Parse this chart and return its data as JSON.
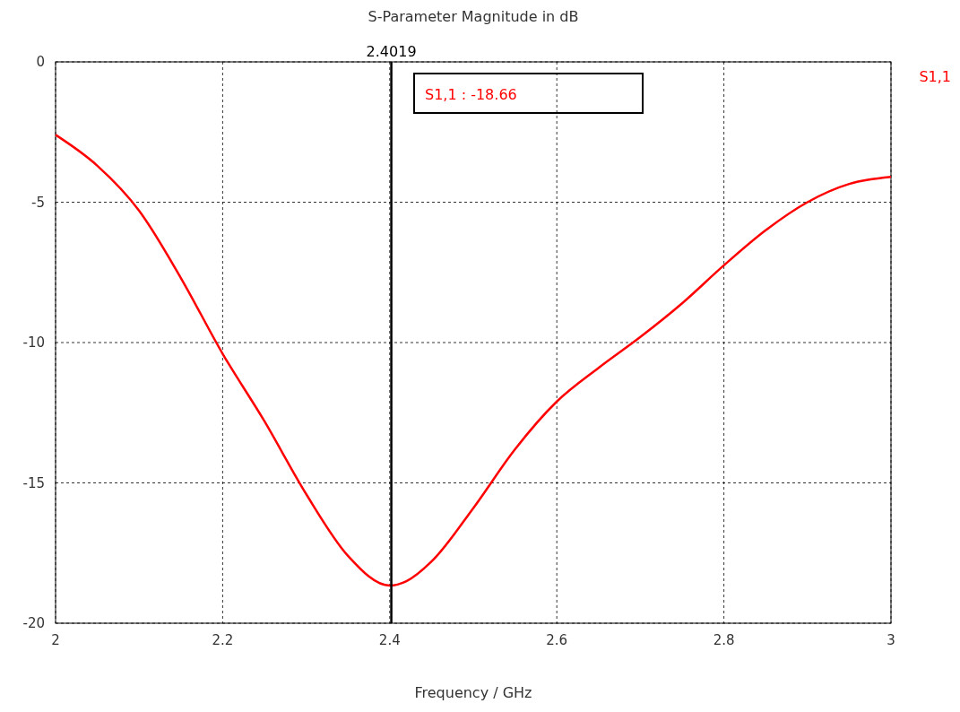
{
  "chart_data": {
    "type": "line",
    "title": "S-Parameter Magnitude in dB",
    "xlabel": "Frequency / GHz",
    "xlim": [
      2,
      3
    ],
    "xticks": [
      2,
      2.2,
      2.4,
      2.6,
      2.8,
      3
    ],
    "ylim": [
      -20,
      0
    ],
    "yticks": [
      -20,
      -15,
      -10,
      -5,
      0
    ],
    "grid": true,
    "legend": "top right",
    "series": [
      {
        "name": "S1,1",
        "color": "#ff0000",
        "x": [
          2,
          2.05,
          2.1,
          2.15,
          2.2,
          2.25,
          2.3,
          2.35,
          2.4,
          2.42,
          2.45,
          2.5,
          2.55,
          2.6,
          2.65,
          2.7,
          2.75,
          2.8,
          2.85,
          2.9,
          2.95,
          3
        ],
        "values": [
          -2.6,
          -3.7,
          -5.3,
          -7.7,
          -10.4,
          -12.8,
          -15.4,
          -17.6,
          -18.66,
          -18.5,
          -17.8,
          -15.9,
          -13.8,
          -12.1,
          -10.9,
          -9.8,
          -8.6,
          -7.25,
          -6.0,
          -5.0,
          -4.35,
          -4.1
        ]
      }
    ],
    "ref_lines": [
      {
        "axis": "x",
        "value": 2.4019,
        "label": "2.4019",
        "color": "#000000"
      }
    ],
    "annotations": [
      "S1,1 : -18.66"
    ]
  }
}
